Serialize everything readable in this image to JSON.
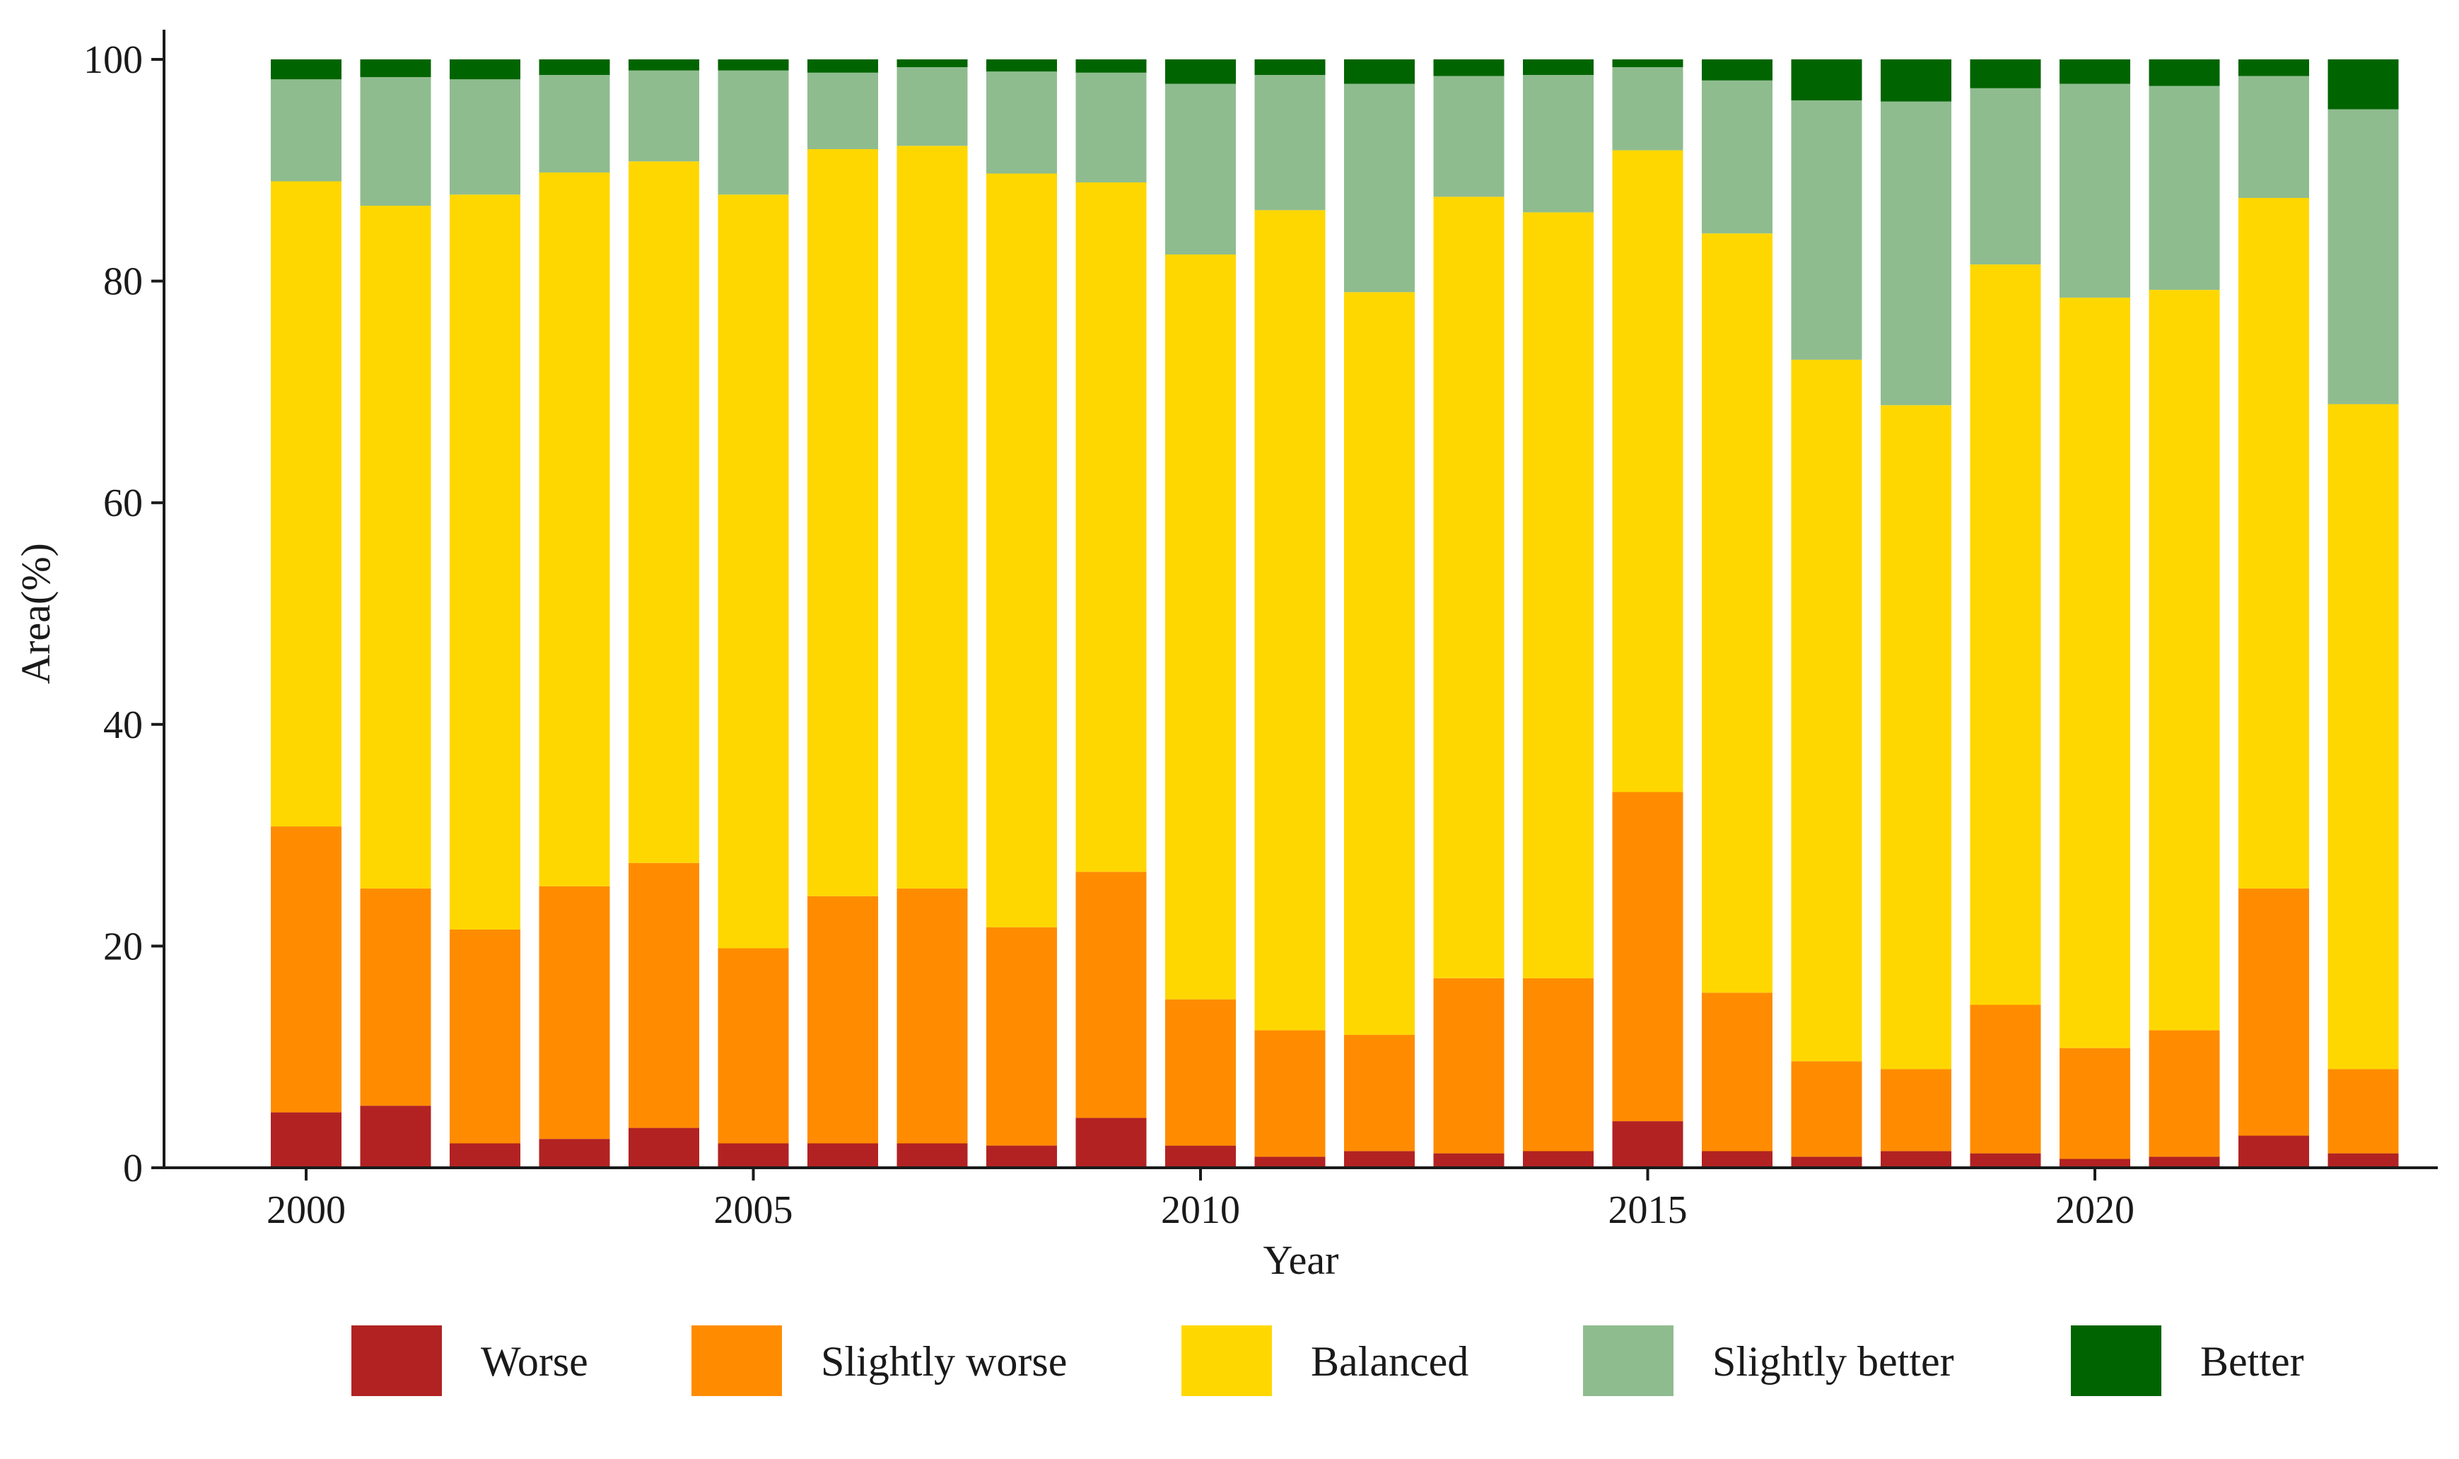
{
  "chart_data": {
    "type": "bar",
    "stacked": true,
    "title": "",
    "xlabel": "Year",
    "ylabel": "Area(%)",
    "ylim": [
      0,
      100
    ],
    "yticks": [
      "0",
      "20",
      "40",
      "60",
      "80",
      "100"
    ],
    "xticks": [
      "2000",
      "2005",
      "2010",
      "2015",
      "2020"
    ],
    "x": [
      2000,
      2001,
      2002,
      2003,
      2004,
      2005,
      2006,
      2007,
      2008,
      2009,
      2010,
      2011,
      2012,
      2013,
      2014,
      2015,
      2016,
      2017,
      2018,
      2019,
      2020,
      2021,
      2022,
      2023
    ],
    "grid": false,
    "legend_position": "bottom",
    "series": [
      {
        "name": "Worse",
        "color": "#b22222",
        "values": [
          5.0,
          5.6,
          2.2,
          2.6,
          3.6,
          2.2,
          2.2,
          2.2,
          2.0,
          4.5,
          2.0,
          1.0,
          1.5,
          1.3,
          1.5,
          4.2,
          1.5,
          1.0,
          1.5,
          1.3,
          0.8,
          1.0,
          2.9,
          1.3
        ]
      },
      {
        "name": "Slightly worse",
        "color": "#ff8c00",
        "values": [
          25.8,
          19.6,
          19.3,
          22.8,
          23.9,
          17.6,
          22.3,
          23.0,
          19.7,
          22.2,
          13.2,
          11.4,
          10.5,
          15.8,
          15.6,
          29.7,
          14.3,
          8.6,
          7.4,
          13.4,
          10.0,
          11.4,
          22.3,
          7.6
        ]
      },
      {
        "name": "Balanced",
        "color": "#ffd700",
        "values": [
          58.2,
          61.6,
          66.3,
          64.4,
          63.3,
          68.0,
          67.4,
          67.0,
          68.0,
          62.2,
          67.2,
          74.0,
          67.0,
          70.5,
          69.1,
          57.9,
          68.5,
          63.3,
          59.9,
          66.8,
          67.7,
          66.8,
          62.3,
          60.0
        ]
      },
      {
        "name": "Slightly better",
        "color": "#8fbc8f",
        "values": [
          9.2,
          11.6,
          10.4,
          8.8,
          8.2,
          11.2,
          6.9,
          7.1,
          9.2,
          9.9,
          15.4,
          12.2,
          18.8,
          10.9,
          12.4,
          7.5,
          13.8,
          23.4,
          27.4,
          15.9,
          19.3,
          18.4,
          11.0,
          26.6
        ]
      },
      {
        "name": "Better",
        "color": "#006400",
        "values": [
          1.8,
          1.6,
          1.8,
          1.4,
          1.0,
          1.0,
          1.2,
          0.7,
          1.1,
          1.2,
          2.2,
          1.4,
          2.2,
          1.5,
          1.4,
          0.7,
          1.9,
          3.7,
          3.8,
          2.6,
          2.2,
          2.4,
          1.5,
          4.5
        ]
      }
    ]
  }
}
